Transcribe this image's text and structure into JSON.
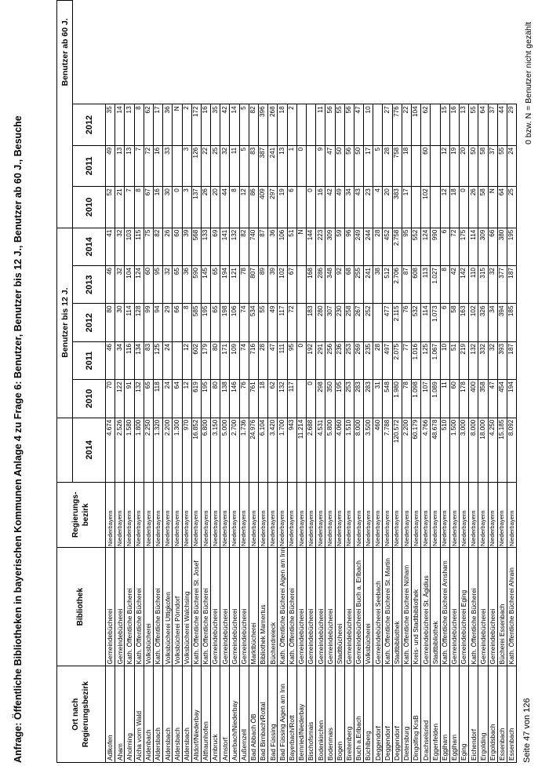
{
  "title": "Anfrage: Öffentliche Bibliotheken in bayerischen Kommunen Anlage 4 zu Frage 6: Benutzer, Benutzer bis 12 J., Benutzer ab 60 J., Besuche",
  "footer": {
    "left": "Seite 47 von 126",
    "right": "0 bzw. N = Benutzer nicht gezählt"
  },
  "table": {
    "headers": {
      "ort_line1": "Ort nach",
      "ort_line2": "Regierungsbezirk",
      "bibliothek": "Bibliothek",
      "bez_line1": "Regierungs-",
      "bez_line2": "bezirk",
      "group_bis12": "Benutzer bis 12 J.",
      "group_ab60": "Benutzer ab 60 J.",
      "years": [
        "2014",
        "2010",
        "2011",
        "2012",
        "2013",
        "2014",
        "2010",
        "2011",
        "2012"
      ]
    },
    "rows": [
      {
        "ort": "Adlkofen",
        "bib": "Gemeindebücherei",
        "bez": "Niederbayern",
        "v": [
          "4.674",
          "70",
          "46",
          "80",
          "46",
          "41",
          "52",
          "49",
          "35"
        ]
      },
      {
        "ort": "Aham",
        "bib": "Gemeindebücherei",
        "bez": "Niederbayern",
        "v": [
          "2.526",
          "122",
          "34",
          "30",
          "32",
          "32",
          "21",
          "13",
          "14"
        ]
      },
      {
        "ort": "Aholming",
        "bib": "Kath. Öffentliche Bücherei",
        "bez": "Niederbayern",
        "v": [
          "1.580",
          "91",
          "116",
          "114",
          "104",
          "103",
          "7",
          "13",
          "13"
        ]
      },
      {
        "ort": "Aicha vorm Wald",
        "bib": "Kath. Öffentliche Bücherei",
        "bez": "Niederbayern",
        "v": [
          "1.800",
          "132",
          "134",
          "128",
          "124",
          "115",
          "8",
          "7",
          "8"
        ]
      },
      {
        "ort": "Aidenbach",
        "bib": "Volksbücherei",
        "bez": "Niederbayern",
        "v": [
          "2.250",
          "65",
          "83",
          "99",
          "60",
          "75",
          "67",
          "72",
          "62"
        ]
      },
      {
        "ort": "Aldersbach",
        "bib": "Kath. Öffentliche Bücherei",
        "bez": "Niederbayern",
        "v": [
          "1.320",
          "118",
          "125",
          "94",
          "95",
          "82",
          "16",
          "16",
          "17"
        ]
      },
      {
        "ort": "Aldersbach",
        "bib": "Volksbücherei Uttigkofen",
        "bez": "Niederbayern",
        "v": [
          "2.200",
          "24",
          "24",
          "29",
          "32",
          "26",
          "30",
          "33",
          "36"
        ]
      },
      {
        "ort": "Aldersbach",
        "bib": "Volksbücherei Pörndorf",
        "bez": "Niederbayern",
        "v": [
          "1.300",
          "64",
          "",
          "66",
          "65",
          "60",
          "0",
          "",
          "N"
        ]
      },
      {
        "ort": "Aldersbach",
        "bib": "Volksbücherei Walchsing",
        "bez": "Niederbayern",
        "v": [
          "970",
          "12",
          "12",
          "8",
          "36",
          "39",
          "3",
          "3",
          "2"
        ]
      },
      {
        "ort": "Altdorf/Niederbay",
        "bib": "Kath. Öffentliche Bücherei St. Josef",
        "bez": "Niederbayern",
        "v": [
          "16.852",
          "619",
          "602",
          "585",
          "590",
          "568",
          "137",
          "126",
          "172"
        ]
      },
      {
        "ort": "Altfraunhofen",
        "bib": "Kath. Öffentliche Bücherei",
        "bez": "Niederbayern",
        "v": [
          "6.800",
          "195",
          "179",
          "195",
          "145",
          "133",
          "26",
          "22",
          "16"
        ]
      },
      {
        "ort": "Arnbruck",
        "bib": "Gemeindebücherei",
        "bez": "Niederbayern",
        "v": [
          "3.150",
          "80",
          "80",
          "65",
          "65",
          "69",
          "20",
          "25",
          "35"
        ]
      },
      {
        "ort": "Arnstorf",
        "bib": "Gemeindebücherei",
        "bez": "Niederbayern",
        "v": [
          "5.000",
          "138",
          "171",
          "198",
          "194",
          "141",
          "44",
          "32",
          "42"
        ]
      },
      {
        "ort": "Auerbach/Niederbay",
        "bib": "Gemeindebücherei",
        "bez": "Niederbayern",
        "v": [
          "2.700",
          "146",
          "109",
          "106",
          "121",
          "132",
          "8",
          "11",
          "14"
        ]
      },
      {
        "ort": "Außernzell",
        "bib": "Gemeindebücherei",
        "bez": "Niederbayern",
        "v": [
          "1.736",
          "76",
          "74",
          "74",
          "78",
          "82",
          "12",
          "5",
          "5"
        ]
      },
      {
        "ort": "Bad Abbach ÖB",
        "bib": "Marktbücherei",
        "bez": "Niederbayern",
        "v": [
          "24.976",
          "761",
          "716",
          "534",
          "807",
          "740",
          "86",
          "83",
          "82"
        ]
      },
      {
        "ort": "Bad Birnbach/Rottal",
        "bib": "Bibliothek Mamertus",
        "bez": "Niederbayern",
        "v": [
          "6.104",
          "18",
          "28",
          "55",
          "89",
          "87",
          "409",
          "387",
          "396"
        ]
      },
      {
        "ort": "Bad Füssing",
        "bib": "Bücherdreieck",
        "bez": "Niederbayern",
        "v": [
          "3.420",
          "62",
          "47",
          "49",
          "39",
          "36",
          "297",
          "241",
          "268"
        ]
      },
      {
        "ort": "Bad Füssing Aigen am Inn",
        "bib": "Kath. Öffentliche Bücherei Aigen am Inn",
        "bez": "Niederbayern",
        "v": [
          "1.700",
          "132",
          "111",
          "117",
          "102",
          "106",
          "19",
          "13",
          "18"
        ]
      },
      {
        "ort": "Bayerbach/Rott",
        "bib": "Kath. Öffentliche Bücherei",
        "bez": "Niederbayern",
        "v": [
          "943",
          "117",
          "95",
          "72",
          "67",
          "51",
          "6",
          "1",
          "2"
        ]
      },
      {
        "ort": "Bernried/Niederbay",
        "bib": "Gemeindebücherei",
        "bez": "Niederbayern",
        "v": [
          "11.214",
          "",
          "0",
          "",
          "",
          "N",
          "",
          "0",
          ""
        ]
      },
      {
        "ort": "Bischofsmais",
        "bib": "Gemeindebücherei",
        "bez": "Niederbayern",
        "v": [
          "2.688",
          "0",
          "192",
          "183",
          "168",
          "144",
          "0",
          "",
          ""
        ]
      },
      {
        "ort": "Bodenkirchen",
        "bib": "Gemeindebücherei",
        "bez": "Niederbayern",
        "v": [
          "4.531",
          "298",
          "291",
          "280",
          "286",
          "223",
          "16",
          "9",
          "11"
        ]
      },
      {
        "ort": "Bodenmais",
        "bib": "Gemeindebücherei",
        "bez": "Niederbayern",
        "v": [
          "5.800",
          "350",
          "256",
          "307",
          "348",
          "309",
          "42",
          "47",
          "56"
        ]
      },
      {
        "ort": "Bogen",
        "bib": "Stadtbücherei",
        "bez": "Niederbayern",
        "v": [
          "4.060",
          "195",
          "236",
          "230",
          "92",
          "59",
          "49",
          "50",
          "55"
        ]
      },
      {
        "ort": "Breitenberg",
        "bib": "Gemeindebücherei",
        "bez": "Niederbayern",
        "v": [
          "1.510",
          "253",
          "253",
          "258",
          "68",
          "96",
          "34",
          "56",
          "56"
        ]
      },
      {
        "ort": "Buch a.Erlbach",
        "bib": "Gemeindebücherei Buch a. Erlbach",
        "bez": "Niederbayern",
        "v": [
          "8.000",
          "283",
          "269",
          "267",
          "255",
          "249",
          "43",
          "50",
          "47"
        ]
      },
      {
        "ort": "Büchlberg",
        "bib": "Volksbücherei",
        "bez": "Niederbayern",
        "v": [
          "3.500",
          "283",
          "235",
          "252",
          "241",
          "244",
          "23",
          "17",
          "10"
        ]
      },
      {
        "ort": "Deggendorf",
        "bib": "Gemeindebücherei Seebach",
        "bez": "Niederbayern",
        "v": [
          "460",
          "31",
          "28",
          "",
          "38",
          "28",
          "4",
          "5",
          ""
        ]
      },
      {
        "ort": "Deggendorf",
        "bib": "Kath. Öffentliche Bücherei St. Martin",
        "bez": "Niederbayern",
        "v": [
          "7.788",
          "548",
          "497",
          "477",
          "512",
          "452",
          "20",
          "28",
          "27"
        ]
      },
      {
        "ort": "Deggendorf",
        "bib": "Stadtbibliothek",
        "bez": "Niederbayern",
        "v": [
          "120.572",
          "1.980",
          "2.075",
          "2.115",
          "2.706",
          "2.758",
          "383",
          "758",
          "776"
        ]
      },
      {
        "ort": "Dietersburg",
        "bib": "Kath. Öffentliche Bücherei Nöham",
        "bez": "Niederbayern",
        "v": [
          "2.200",
          "78",
          "77",
          "76",
          "87",
          "95",
          "17",
          "18",
          "22"
        ]
      },
      {
        "ort": "Dingolfing KrsB",
        "bib": "Kreis- und Stadtbibliothek",
        "bez": "Niederbayern",
        "v": [
          "60.179",
          "1.098",
          "1.016",
          "532",
          "608",
          "552",
          "",
          "",
          "104"
        ]
      },
      {
        "ort": "Drachselsried",
        "bib": "Gemeindebücherei St. Ägidius",
        "bez": "Niederbayern",
        "v": [
          "4.766",
          "107",
          "125",
          "114",
          "113",
          "124",
          "102",
          "60",
          "62"
        ]
      },
      {
        "ort": "Eggenfelden",
        "bib": "Stadtbibliothek",
        "bez": "Niederbayern",
        "v": [
          "48.678",
          "1.089",
          "1.067",
          "1.073",
          "1.027",
          "990",
          "",
          "",
          ""
        ]
      },
      {
        "ort": "Egglham",
        "bib": "Kath. Öffentliche Bücherei Amsham",
        "bez": "Niederbayern",
        "v": [
          "510",
          "11",
          "10",
          "6",
          "8",
          "6",
          "12",
          "12",
          "15"
        ]
      },
      {
        "ort": "Egglham",
        "bib": "Gemeindebücherei",
        "bez": "Niederbayern",
        "v": [
          "1.500",
          "60",
          "51",
          "58",
          "42",
          "72",
          "18",
          "19",
          "16"
        ]
      },
      {
        "ort": "Eging",
        "bib": "Gemeindebücherei Eging",
        "bez": "Niederbayern",
        "v": [
          "3.000",
          "178",
          "219",
          "163",
          "142",
          "175",
          "0",
          "20",
          "13"
        ]
      },
      {
        "ort": "Eichendorf",
        "bib": "Kath. Öffentliche Bücherei",
        "bez": "Niederbayern",
        "v": [
          "8.000",
          "400",
          "132",
          "102",
          "110",
          "114",
          "26",
          "50",
          "55"
        ]
      },
      {
        "ort": "Ergolding",
        "bib": "Gemeindebücherei",
        "bez": "Niederbayern",
        "v": [
          "18.000",
          "358",
          "332",
          "326",
          "315",
          "309",
          "58",
          "58",
          "64"
        ]
      },
      {
        "ort": "Ergoldsbach",
        "bib": "Gemeindebücherei",
        "bez": "Niederbayern",
        "v": [
          "4.250",
          "47",
          "32",
          "34",
          "32",
          "66",
          "N",
          "37",
          "37"
        ]
      },
      {
        "ort": "Essenbach",
        "bib": "Bücherei Essenbach",
        "bez": "Niederbayern",
        "v": [
          "15.185",
          "454",
          "393",
          "394",
          "377",
          "380",
          "64",
          "55",
          "44"
        ]
      },
      {
        "ort": "Essenbach",
        "bib": "Kath. Öffentliche Bücherei Ahrain",
        "bez": "Niederbayern",
        "v": [
          "8.092",
          "194",
          "187",
          "185",
          "187",
          "195",
          "25",
          "24",
          "29"
        ]
      }
    ]
  }
}
